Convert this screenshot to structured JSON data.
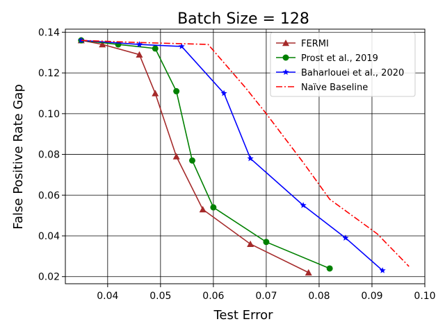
{
  "chart_data": {
    "type": "line",
    "title": "Batch Size = 128",
    "xlabel": "Test Error",
    "ylabel": "False Positive Rate Gap",
    "xlim": [
      0.032,
      0.1
    ],
    "ylim": [
      0.0165,
      0.1415
    ],
    "xticks": [
      0.04,
      0.05,
      0.06,
      0.07,
      0.08,
      0.09,
      0.1
    ],
    "xtick_labels": [
      "0.04",
      "0.05",
      "0.06",
      "0.07",
      "0.08",
      "0.09",
      "0.10"
    ],
    "yticks": [
      0.02,
      0.04,
      0.06,
      0.08,
      0.1,
      0.12,
      0.14
    ],
    "ytick_labels": [
      "0.02",
      "0.04",
      "0.06",
      "0.08",
      "0.10",
      "0.12",
      "0.14"
    ],
    "grid": true,
    "legend_position": "top-right",
    "series": [
      {
        "name": "FERMI",
        "color": "#a52a2a",
        "marker": "triangle",
        "line_style": "solid",
        "x": [
          0.035,
          0.039,
          0.046,
          0.049,
          0.053,
          0.058,
          0.067,
          0.078
        ],
        "y": [
          0.136,
          0.134,
          0.129,
          0.11,
          0.079,
          0.053,
          0.036,
          0.022
        ]
      },
      {
        "name": "Prost et al., 2019",
        "color": "#008000",
        "marker": "circle",
        "line_style": "solid",
        "x": [
          0.035,
          0.042,
          0.049,
          0.053,
          0.056,
          0.06,
          0.07,
          0.082
        ],
        "y": [
          0.136,
          0.134,
          0.132,
          0.111,
          0.077,
          0.054,
          0.037,
          0.024
        ]
      },
      {
        "name": "Baharlouei et al., 2020",
        "color": "#0000ff",
        "marker": "star",
        "line_style": "solid",
        "x": [
          0.035,
          0.046,
          0.054,
          0.062,
          0.067,
          0.077,
          0.085,
          0.092
        ],
        "y": [
          0.136,
          0.134,
          0.133,
          0.11,
          0.078,
          0.055,
          0.039,
          0.023
        ]
      },
      {
        "name": "Naïve Baseline",
        "color": "#ff0000",
        "marker": "none",
        "line_style": "dashdot",
        "x": [
          0.035,
          0.045,
          0.059,
          0.066,
          0.07,
          0.077,
          0.082,
          0.091,
          0.097
        ],
        "y": [
          0.136,
          0.135,
          0.134,
          0.113,
          0.1,
          0.076,
          0.058,
          0.041,
          0.025
        ]
      }
    ]
  }
}
